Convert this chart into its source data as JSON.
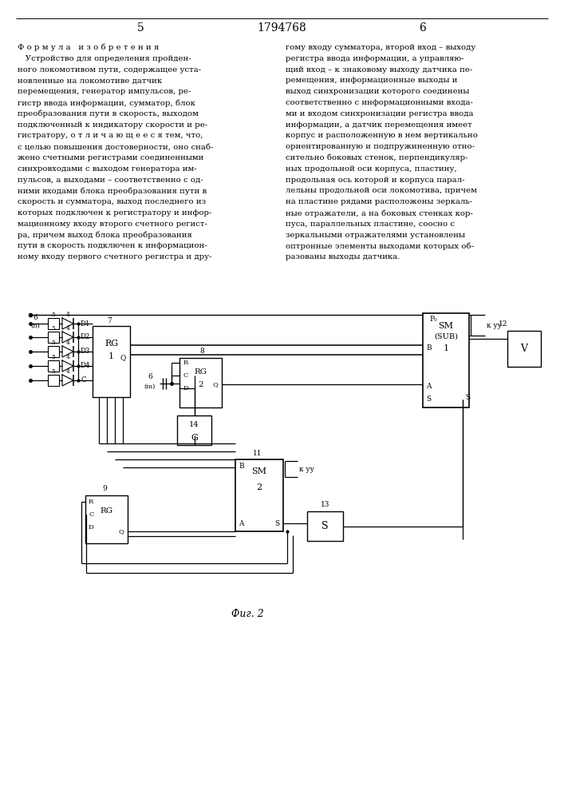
{
  "page_numbers": [
    "5",
    "1794768",
    "6"
  ],
  "left_text": [
    "Ф о р м у л а   и з о б р е т е н и я",
    "   Устройство для определения пройден-",
    "ного локомотивом пути, содержащее уста-",
    "новленные на локомотиве датчик",
    "перемещения, генератор импульсов, ре-",
    "гистр ввода информации, сумматор, блок",
    "преобразования пути в скорость, выходом",
    "подключенный к индикатору скорости и ре-",
    "гистратору, о т л и ч а ю щ е е с я тем, что,",
    "с целью повышения достоверности, оно снаб-",
    "жено счетными регистрами соединенными",
    "синхровходами с выходом генератора им-",
    "пульсов, а выходами – соответственно с од-",
    "ними входами блока преобразования пути в",
    "скорость и сумматора, выход последнего из",
    "которых подключен к регистратору и инфор-",
    "мационному входу второго счетного регист-",
    "ра, причем выход блока преобразования",
    "пути в скорость подключен к информацион-",
    "ному входу первого счетного регистра и дру-"
  ],
  "right_text": [
    "гому входу сумматора, второй вход – выходу",
    "регистра ввода информации, а управляю-",
    "щий вход – к знаковому выходу датчика пе-",
    "ремещения, информационные выходы и",
    "выход синхронизации которого соединены",
    "соответственно с информационными входа-",
    "ми и входом синхронизации регистра ввода",
    "информации, а датчик перемещения имеет",
    "корпус и расположенную в нем вертикально",
    "ориентированную и подпружиненную отно-",
    "сительно боковых стенок, перпендикуляр-",
    "ных продольной оси корпуса, пластину,",
    "продольная ось которой и корпуса парал-",
    "лельны продольной оси локомотива, причем",
    "на пластине рядами расположены зеркаль-",
    "ные отражатели, а на боковых стенках кор-",
    "пуса, параллельных пластине, соосно с",
    "зеркальными отражателями установлены",
    "оптронные элементы выходами которых об-",
    "разованы выходы датчика."
  ],
  "fig_label": "Фиг. 2",
  "background_color": "#ffffff"
}
